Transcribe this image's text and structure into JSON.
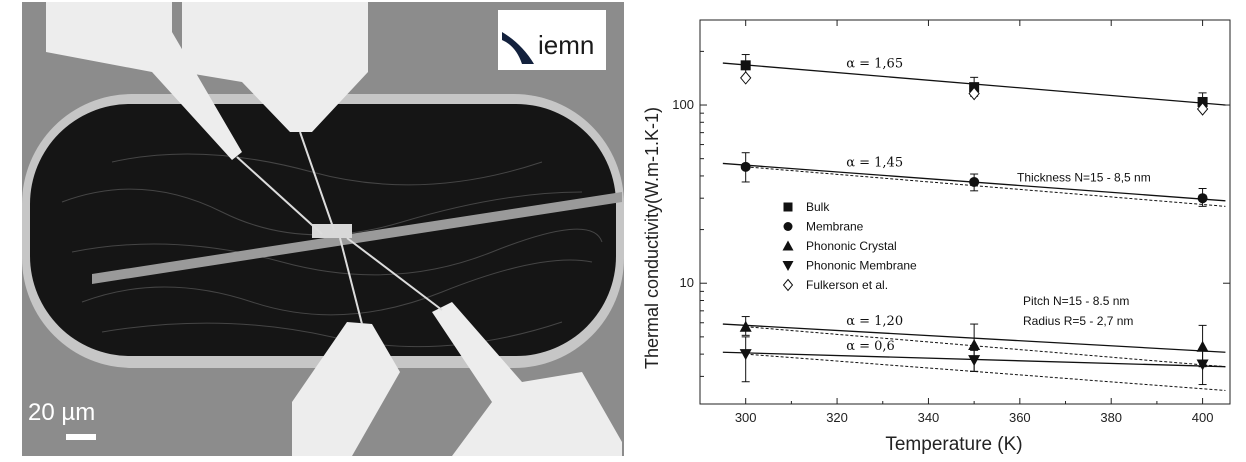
{
  "micrograph": {
    "logo_text": "iemn",
    "scale_bar_label": "20 µm",
    "colors": {
      "background": "#8c8c8c",
      "electrode": "#ececec",
      "trench": "#141414",
      "rim": "#c8c8c8"
    }
  },
  "chart_data": {
    "type": "scatter",
    "xlabel": "Temperature (K)",
    "ylabel": "Thermal conductivity(W.m-1.K-1)",
    "y_scale": "log",
    "xlim": [
      290,
      406
    ],
    "ylim": [
      2.1,
      300
    ],
    "x_ticks": [
      300,
      320,
      340,
      360,
      380,
      400
    ],
    "y_ticks": [
      10,
      100
    ],
    "grid": false,
    "legend_placement": "center-left",
    "series": [
      {
        "name": "Bulk",
        "marker": "square",
        "x": [
          300,
          350,
          400
        ],
        "y": [
          167,
          126,
          104
        ],
        "err": [
          [
            145,
            192
          ],
          [
            112,
            143
          ],
          [
            94,
            117
          ]
        ]
      },
      {
        "name": "Membrane",
        "marker": "circle",
        "x": [
          300,
          350,
          400
        ],
        "y": [
          45,
          37,
          30
        ],
        "err": [
          [
            37,
            54
          ],
          [
            33,
            41
          ],
          [
            27,
            34
          ]
        ]
      },
      {
        "name": "Phononic Crystal",
        "marker": "triangle-up",
        "x": [
          300,
          350,
          400
        ],
        "y": [
          5.7,
          4.5,
          4.4
        ],
        "err": [
          [
            5.1,
            6.5
          ],
          [
            3.2,
            5.9
          ],
          [
            3.4,
            5.8
          ]
        ]
      },
      {
        "name": "Phononic Membrane",
        "marker": "triangle-down",
        "x": [
          300,
          350,
          400
        ],
        "y": [
          4.0,
          3.7,
          3.5
        ],
        "err": [
          [
            2.8,
            5.0
          ],
          [
            3.2,
            4.2
          ],
          [
            2.7,
            4.2
          ]
        ]
      },
      {
        "name": "Fulkerson et al.",
        "marker": "diamond-open",
        "x": [
          300,
          350,
          400
        ],
        "y": [
          142,
          116,
          95
        ]
      }
    ],
    "fit_lines": [
      {
        "label": "α = 1,65",
        "x": [
          295,
          405
        ],
        "y": [
          172,
          100
        ],
        "style": "solid"
      },
      {
        "label": "α = 1,45",
        "x": [
          295,
          405
        ],
        "y": [
          47,
          29
        ],
        "style": "solid"
      },
      {
        "x": [
          300,
          405
        ],
        "y": [
          45,
          27
        ],
        "style": "dashed"
      },
      {
        "label": "α = 1,20",
        "x": [
          295,
          405
        ],
        "y": [
          5.9,
          4.1
        ],
        "style": "solid"
      },
      {
        "x": [
          300,
          405
        ],
        "y": [
          5.7,
          3.4
        ],
        "style": "dashed"
      },
      {
        "label": "α = 0,6",
        "x": [
          295,
          405
        ],
        "y": [
          4.1,
          3.4
        ],
        "style": "solid"
      },
      {
        "x": [
          300,
          405
        ],
        "y": [
          4.0,
          2.5
        ],
        "style": "dashed"
      }
    ],
    "annotations": [
      "Thickness N=15 - 8,5 nm",
      "Pitch N=15   - 8.5 nm",
      "Radius R=5 - 2,7 nm"
    ]
  }
}
